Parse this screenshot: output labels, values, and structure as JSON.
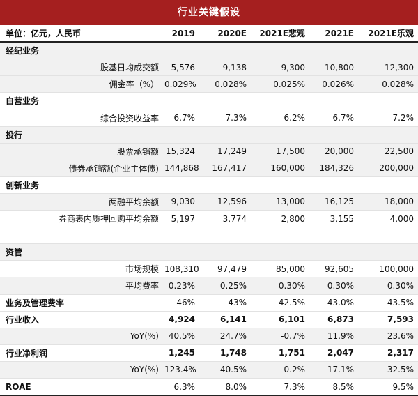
{
  "title": "行业关键假设",
  "columns": [
    "单位：亿元，人民币",
    "2019",
    "2020E",
    "2021E悲观",
    "2021E",
    "2021E乐观"
  ],
  "rows": [
    {
      "kind": "section",
      "shade": true,
      "label": "经纪业务",
      "values": [
        "",
        "",
        "",
        "",
        ""
      ]
    },
    {
      "kind": "sub",
      "shade": true,
      "label": "股基日均成交额",
      "values": [
        "5,576",
        "9,138",
        "9,300",
        "10,800",
        "12,300"
      ]
    },
    {
      "kind": "sub",
      "shade": true,
      "label": "佣金率（%）",
      "values": [
        "0.029%",
        "0.028%",
        "0.025%",
        "0.026%",
        "0.028%"
      ]
    },
    {
      "kind": "section",
      "shade": false,
      "label": "自营业务",
      "values": [
        "",
        "",
        "",
        "",
        ""
      ]
    },
    {
      "kind": "sub",
      "shade": false,
      "label": "综合投资收益率",
      "values": [
        "6.7%",
        "7.3%",
        "6.2%",
        "6.7%",
        "7.2%"
      ]
    },
    {
      "kind": "section",
      "shade": true,
      "label": "投行",
      "values": [
        "",
        "",
        "",
        "",
        ""
      ]
    },
    {
      "kind": "sub",
      "shade": true,
      "label": "股票承销额",
      "values": [
        "15,324",
        "17,249",
        "17,500",
        "20,000",
        "22,500"
      ]
    },
    {
      "kind": "sub",
      "shade": true,
      "label": "债券承销额(企业主体债)",
      "values": [
        "144,868",
        "167,417",
        "160,000",
        "184,326",
        "200,000"
      ]
    },
    {
      "kind": "section",
      "shade": false,
      "label": "创新业务",
      "values": [
        "",
        "",
        "",
        "",
        ""
      ]
    },
    {
      "kind": "sub",
      "shade": true,
      "label": "两融平均余额",
      "values": [
        "9,030",
        "12,596",
        "13,000",
        "16,125",
        "18,000"
      ]
    },
    {
      "kind": "sub",
      "shade": false,
      "label": "券商表内质押回购平均余额",
      "values": [
        "5,197",
        "3,774",
        "2,800",
        "3,155",
        "4,000"
      ]
    },
    {
      "kind": "blank",
      "shade": false,
      "label": "",
      "values": [
        "",
        "",
        "",
        "",
        ""
      ]
    },
    {
      "kind": "section",
      "shade": true,
      "label": "资管",
      "values": [
        "",
        "",
        "",
        "",
        ""
      ]
    },
    {
      "kind": "sub",
      "shade": false,
      "label": "市场规模",
      "values": [
        "108,310",
        "97,479",
        "85,000",
        "92,605",
        "100,000"
      ]
    },
    {
      "kind": "sub",
      "shade": true,
      "label": "平均费率",
      "values": [
        "0.23%",
        "0.25%",
        "0.30%",
        "0.30%",
        "0.30%"
      ]
    },
    {
      "kind": "boldlabel",
      "shade": false,
      "label": "业务及管理费率",
      "values": [
        "46%",
        "43%",
        "42.5%",
        "43.0%",
        "43.5%"
      ]
    },
    {
      "kind": "bold",
      "shade": false,
      "label": "行业收入",
      "values": [
        "4,924",
        "6,141",
        "6,101",
        "6,873",
        "7,593"
      ]
    },
    {
      "kind": "sub",
      "shade": true,
      "label": "YoY(%)",
      "values": [
        "40.5%",
        "24.7%",
        "-0.7%",
        "11.9%",
        "23.6%"
      ]
    },
    {
      "kind": "bold",
      "shade": false,
      "label": "行业净利润",
      "values": [
        "1,245",
        "1,748",
        "1,751",
        "2,047",
        "2,317"
      ]
    },
    {
      "kind": "sub",
      "shade": true,
      "label": "YoY(%)",
      "values": [
        "123.4%",
        "40.5%",
        "0.2%",
        "17.1%",
        "32.5%"
      ]
    },
    {
      "kind": "boldlabel-last",
      "shade": false,
      "label": "ROAE",
      "values": [
        "6.3%",
        "8.0%",
        "7.3%",
        "8.5%",
        "9.5%"
      ]
    }
  ]
}
